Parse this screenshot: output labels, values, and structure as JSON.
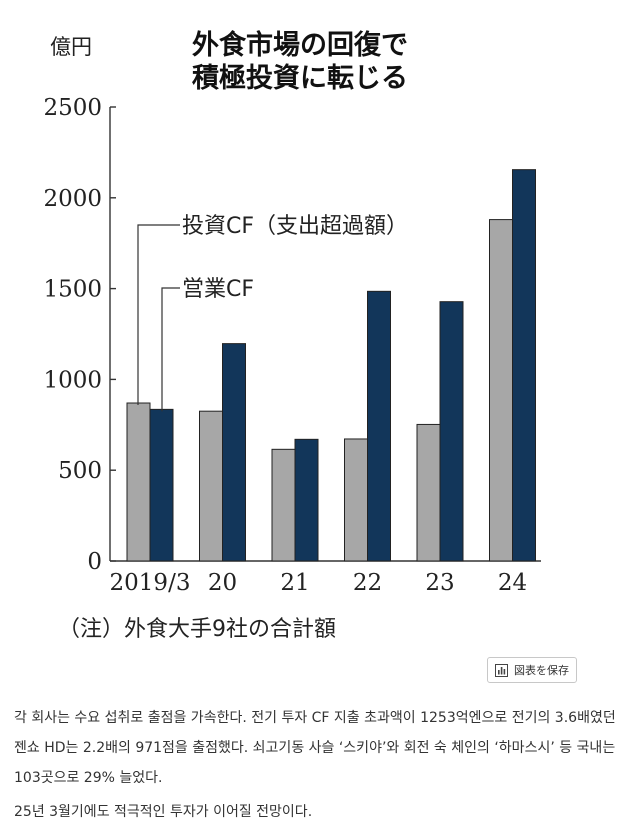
{
  "chart_data": {
    "type": "bar",
    "title": [
      "外食市場の回復で",
      "積極投資に転じる"
    ],
    "unit": "億円",
    "categories": [
      "2019/3",
      "20",
      "21",
      "22",
      "23",
      "24"
    ],
    "series": [
      {
        "name": "投資CF（支出超過額）",
        "values": [
          870,
          825,
          615,
          672,
          752,
          1880
        ],
        "color": "#a7a7a7"
      },
      {
        "name": "営業CF",
        "values": [
          835,
          1197,
          670,
          1485,
          1428,
          2155
        ],
        "color": "#12365a"
      }
    ],
    "yticks": [
      0,
      500,
      1000,
      1500,
      2000,
      2500
    ],
    "ylim": [
      0,
      2600
    ],
    "note": "（注）外食大手9社の合計額",
    "grid": false
  },
  "toolbar": {
    "save_label": "図表を保存",
    "save_icon": "chart-icon"
  },
  "article": {
    "paragraphs": [
      "각 회사는 수요 섭취로 출점을 가속한다. 전기 투자 CF 지출 초과액이 1253억엔으로 전기의 3.6배였던 젠쇼 HD는 2.2배의 971점을 출점했다. 쇠고기동 사슬 ‘스키야’와 회전 숙 체인의 ‘하마스시’ 등 국내는 103곳으로 29% 늘었다.",
      "25년 3월기에도 적극적인 투자가 이어질 전망이다."
    ]
  }
}
